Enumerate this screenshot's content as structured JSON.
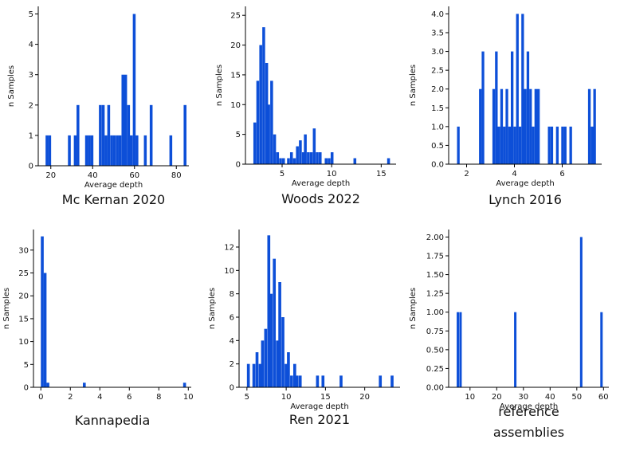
{
  "chart_data": [
    {
      "type": "bar",
      "title": "Mc Kernan 2020",
      "xlabel": "Average depth",
      "ylabel": "n Samples",
      "xlim": [
        14,
        86
      ],
      "ylim": [
        0,
        5.25
      ],
      "xticks": [
        {
          "v": 20,
          "label": "20"
        },
        {
          "v": 40,
          "label": "40"
        },
        {
          "v": 60,
          "label": "60"
        },
        {
          "v": 80,
          "label": "80"
        }
      ],
      "yticks": [
        {
          "v": 0,
          "label": "0"
        },
        {
          "v": 1,
          "label": "1"
        },
        {
          "v": 2,
          "label": "2"
        },
        {
          "v": 3,
          "label": "3"
        },
        {
          "v": 4,
          "label": "4"
        },
        {
          "v": 5,
          "label": "5"
        }
      ],
      "bin_width": 1.35,
      "x": [
        17.5,
        18.8,
        28.2,
        31.0,
        32.3,
        36.4,
        37.7,
        39.0,
        43.0,
        44.4,
        45.7,
        47.0,
        48.4,
        49.7,
        51.1,
        52.4,
        53.8,
        55.1,
        56.5,
        57.8,
        59.2,
        60.5,
        64.5,
        67.3,
        76.7,
        83.5
      ],
      "values": [
        1,
        1,
        1,
        1,
        2,
        1,
        1,
        1,
        2,
        2,
        1,
        2,
        1,
        1,
        1,
        1,
        3,
        3,
        2,
        1,
        5,
        1,
        1,
        2,
        1,
        2
      ]
    },
    {
      "type": "bar",
      "title": "Woods 2022",
      "xlabel": "Average depth",
      "ylabel": "n Samples",
      "xlim": [
        1.3,
        16.5
      ],
      "ylim": [
        0,
        26.5
      ],
      "xticks": [
        {
          "v": 5,
          "label": "5"
        },
        {
          "v": 10,
          "label": "10"
        },
        {
          "v": 15,
          "label": "15"
        }
      ],
      "yticks": [
        {
          "v": 0,
          "label": "0"
        },
        {
          "v": 5,
          "label": "5"
        },
        {
          "v": 10,
          "label": "10"
        },
        {
          "v": 15,
          "label": "15"
        },
        {
          "v": 20,
          "label": "20"
        },
        {
          "v": 25,
          "label": "25"
        }
      ],
      "bin_width": 0.285,
      "x": [
        2.1,
        2.4,
        2.7,
        3.0,
        3.3,
        3.5,
        3.8,
        4.1,
        4.4,
        4.7,
        5.0,
        5.5,
        5.8,
        6.1,
        6.4,
        6.7,
        7.0,
        7.2,
        7.5,
        7.8,
        8.1,
        8.4,
        8.7,
        9.3,
        9.6,
        9.9,
        12.2,
        15.6
      ],
      "values": [
        7,
        14,
        20,
        23,
        17,
        10,
        14,
        5,
        2,
        1,
        1,
        1,
        2,
        1,
        3,
        4,
        2,
        5,
        2,
        2,
        6,
        2,
        2,
        1,
        1,
        2,
        1,
        1
      ]
    },
    {
      "type": "bar",
      "title": "Lynch 2016",
      "xlabel": "Average depth",
      "ylabel": "n Samples",
      "xlim": [
        1.25,
        7.65
      ],
      "ylim": [
        0,
        4.2
      ],
      "xticks": [
        {
          "v": 2,
          "label": "2"
        },
        {
          "v": 4,
          "label": "4"
        },
        {
          "v": 6,
          "label": "6"
        }
      ],
      "yticks": [
        {
          "v": 0,
          "label": "0.0"
        },
        {
          "v": 0.5,
          "label": "0.5"
        },
        {
          "v": 1.0,
          "label": "1.0"
        },
        {
          "v": 1.5,
          "label": "1.5"
        },
        {
          "v": 2.0,
          "label": "2.0"
        },
        {
          "v": 2.5,
          "label": "2.5"
        },
        {
          "v": 3.0,
          "label": "3.0"
        },
        {
          "v": 3.5,
          "label": "3.5"
        },
        {
          "v": 4.0,
          "label": "4.0"
        }
      ],
      "bin_width": 0.11,
      "x": [
        1.6,
        2.52,
        2.63,
        3.08,
        3.19,
        3.3,
        3.41,
        3.52,
        3.63,
        3.74,
        3.85,
        3.96,
        4.07,
        4.18,
        4.29,
        4.4,
        4.51,
        4.62,
        4.73,
        4.84,
        4.95,
        5.4,
        5.51,
        5.74,
        5.96,
        6.07,
        6.3,
        7.08,
        7.19,
        7.3
      ],
      "values": [
        1,
        2,
        3,
        2,
        3,
        1,
        2,
        1,
        2,
        1,
        3,
        1,
        4,
        1,
        4,
        2,
        3,
        2,
        1,
        2,
        2,
        1,
        1,
        1,
        1,
        1,
        1,
        2,
        1,
        2
      ]
    },
    {
      "type": "bar",
      "title": "Kannapedia",
      "xlabel": "",
      "ylabel": "n Samples",
      "xlim": [
        -0.5,
        10.2
      ],
      "ylim": [
        0,
        34.5
      ],
      "xticks": [
        {
          "v": 0,
          "label": "0"
        },
        {
          "v": 2,
          "label": "2"
        },
        {
          "v": 4,
          "label": "4"
        },
        {
          "v": 6,
          "label": "6"
        },
        {
          "v": 8,
          "label": "8"
        },
        {
          "v": 10,
          "label": "10"
        }
      ],
      "yticks": [
        {
          "v": 0,
          "label": "0"
        },
        {
          "v": 5,
          "label": "5"
        },
        {
          "v": 10,
          "label": "10"
        },
        {
          "v": 15,
          "label": "15"
        },
        {
          "v": 20,
          "label": "20"
        },
        {
          "v": 25,
          "label": "25"
        },
        {
          "v": 30,
          "label": "30"
        }
      ],
      "bin_width": 0.195,
      "x": [
        0.0,
        0.19,
        0.38,
        2.85,
        9.65
      ],
      "values": [
        33,
        25,
        1,
        1,
        1
      ]
    },
    {
      "type": "bar",
      "title": "Ren 2021",
      "xlabel": "Average depth",
      "ylabel": "n Samples",
      "xlim": [
        4.0,
        24.5
      ],
      "ylim": [
        0,
        13.5
      ],
      "xticks": [
        {
          "v": 5,
          "label": "5"
        },
        {
          "v": 10,
          "label": "10"
        },
        {
          "v": 15,
          "label": "15"
        },
        {
          "v": 20,
          "label": "20"
        }
      ],
      "yticks": [
        {
          "v": 0,
          "label": "0"
        },
        {
          "v": 2,
          "label": "2"
        },
        {
          "v": 4,
          "label": "4"
        },
        {
          "v": 6,
          "label": "6"
        },
        {
          "v": 8,
          "label": "8"
        },
        {
          "v": 10,
          "label": "10"
        },
        {
          "v": 12,
          "label": "12"
        }
      ],
      "bin_width": 0.37,
      "x": [
        5.0,
        5.7,
        6.1,
        6.5,
        6.8,
        7.2,
        7.6,
        7.9,
        8.3,
        8.7,
        9.0,
        9.4,
        9.8,
        10.1,
        10.5,
        10.9,
        11.2,
        11.6,
        13.8,
        14.5,
        16.8,
        21.8,
        23.3
      ],
      "values": [
        2,
        2,
        3,
        2,
        4,
        5,
        13,
        8,
        11,
        4,
        9,
        6,
        2,
        3,
        1,
        2,
        1,
        1,
        1,
        1,
        1,
        1,
        1
      ]
    },
    {
      "type": "bar",
      "title": "reference assemblies",
      "xlabel": "Average depth",
      "ylabel": "n Samples",
      "xlim": [
        2.0,
        62.0
      ],
      "ylim": [
        0,
        2.1
      ],
      "xticks": [
        {
          "v": 10,
          "label": "10"
        },
        {
          "v": 20,
          "label": "20"
        },
        {
          "v": 30,
          "label": "30"
        },
        {
          "v": 40,
          "label": "40"
        },
        {
          "v": 50,
          "label": "50"
        },
        {
          "v": 60,
          "label": "60"
        }
      ],
      "yticks": [
        {
          "v": 0,
          "label": "0.00"
        },
        {
          "v": 0.25,
          "label": "0.25"
        },
        {
          "v": 0.5,
          "label": "0.50"
        },
        {
          "v": 0.75,
          "label": "0.75"
        },
        {
          "v": 1.0,
          "label": "1.00"
        },
        {
          "v": 1.25,
          "label": "1.25"
        },
        {
          "v": 1.5,
          "label": "1.50"
        },
        {
          "v": 1.75,
          "label": "1.75"
        },
        {
          "v": 2.0,
          "label": "2.00"
        }
      ],
      "bin_width": 0.9,
      "x": [
        5.0,
        6.0,
        26.5,
        51.2,
        58.8
      ],
      "values": [
        1,
        1,
        1,
        2,
        1
      ]
    }
  ]
}
